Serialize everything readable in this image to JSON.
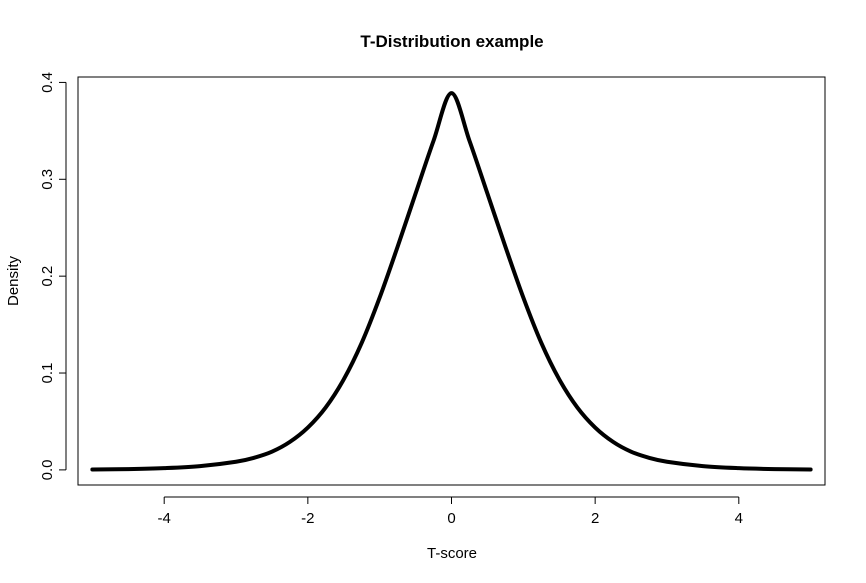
{
  "chart_data": {
    "type": "line",
    "title": "T-Distribution example",
    "xlabel": "T-score",
    "ylabel": "Density",
    "xlim": [
      -5.2,
      5.2
    ],
    "ylim": [
      -0.0156,
      0.4056
    ],
    "xticks": [
      -4,
      -2,
      0,
      2,
      4
    ],
    "xtick_labels": [
      "-4",
      "-2",
      "0",
      "2",
      "4"
    ],
    "yticks": [
      0.0,
      0.1,
      0.2,
      0.3,
      0.4
    ],
    "ytick_labels": [
      "0.0",
      "0.1",
      "0.2",
      "0.3",
      "0.4"
    ],
    "grid": false,
    "line_color": "#000000",
    "series": [
      {
        "x": [
          -5.0,
          -4.5,
          -4.0,
          -3.5,
          -3.0,
          -2.75,
          -2.5,
          -2.25,
          -2.0,
          -1.75,
          -1.5,
          -1.25,
          -1.0,
          -0.75,
          -0.5,
          -0.25,
          0.0,
          0.25,
          0.5,
          0.75,
          1.0,
          1.25,
          1.5,
          1.75,
          2.0,
          2.25,
          2.5,
          2.75,
          3.0,
          3.5,
          4.0,
          4.5,
          5.0
        ],
        "y": [
          0.0004,
          0.0008,
          0.0018,
          0.0039,
          0.0084,
          0.0125,
          0.0188,
          0.0289,
          0.0437,
          0.0646,
          0.0935,
          0.1312,
          0.1779,
          0.2305,
          0.2853,
          0.3398,
          0.3889,
          0.3398,
          0.2853,
          0.2305,
          0.1779,
          0.1312,
          0.0935,
          0.0646,
          0.0437,
          0.0289,
          0.0188,
          0.0125,
          0.0084,
          0.0039,
          0.0018,
          0.0008,
          0.0004
        ]
      }
    ]
  }
}
